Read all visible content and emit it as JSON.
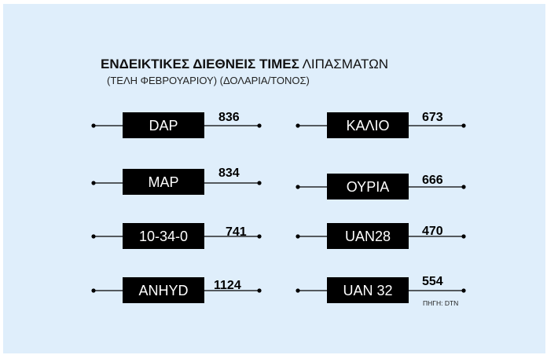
{
  "chart_data": {
    "type": "table",
    "title_bold": "ΕΝΔΕΙΚΤΙΚΕΣ ΔΙΕΘΝΕΙΣ ΤΙΜΕΣ",
    "title_rest": "ΛΙΠΑΣΜΑΤΩΝ",
    "subtitle": "(ΤΕΛΗ ΦΕΒΡΟΥΑΡΙΟΥ) (ΔΟΛΑΡΙΑ/ΤΟΝΟΣ)",
    "source": "ΠΗΓΗ: DTN",
    "items": [
      {
        "label": "DAP",
        "value": 836
      },
      {
        "label": "MAP",
        "value": 834
      },
      {
        "label": "10-34-0",
        "value": 741
      },
      {
        "label": "ANHYD",
        "value": 1124
      },
      {
        "label": "ΚΑΛΙΟ",
        "value": 673
      },
      {
        "label": "ΟΥΡΙΑ",
        "value": 666
      },
      {
        "label": "UAN28",
        "value": 470
      },
      {
        "label": "UAN 32",
        "value": 554
      }
    ],
    "colors": {
      "background": "#dfeefb",
      "label_box": "#000000",
      "label_text": "#ffffff",
      "line": "#000000"
    }
  }
}
